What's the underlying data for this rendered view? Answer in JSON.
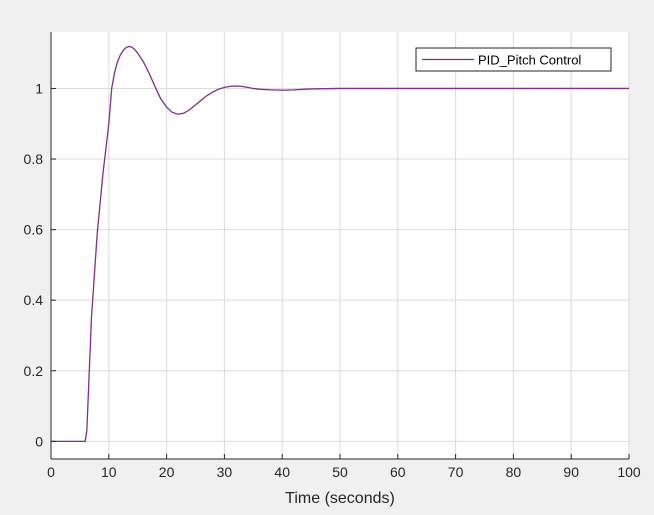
{
  "colors": {
    "figure_bg": "#f0f0f0",
    "axes_bg": "#ffffff",
    "grid": "#dcdcdc",
    "axis": "#262626",
    "series": "#7e2f8e"
  },
  "chart_data": {
    "type": "line",
    "title": "",
    "xlabel": "Time (seconds)",
    "ylabel": "",
    "xlim": [
      0,
      100
    ],
    "ylim": [
      -0.05,
      1.16
    ],
    "grid": true,
    "legend_position": "top-right",
    "x_ticks": [
      0,
      10,
      20,
      30,
      40,
      50,
      60,
      70,
      80,
      90,
      100
    ],
    "y_ticks": [
      0,
      0.2,
      0.4,
      0.6,
      0.8,
      1
    ],
    "series": [
      {
        "name": "PID_Pitch Control",
        "x": [
          0,
          5.9,
          6.2,
          7,
          8,
          9,
          10,
          10.5,
          11,
          11.5,
          12,
          12.5,
          13,
          13.5,
          14,
          14.5,
          15,
          16,
          17,
          18,
          19,
          20,
          21,
          22,
          23,
          24,
          25,
          26,
          27,
          28,
          29,
          30,
          31,
          32,
          33,
          34,
          35,
          36,
          38,
          40,
          42,
          44,
          46,
          50,
          60,
          70,
          80,
          90,
          100
        ],
        "values": [
          0,
          0,
          0.03,
          0.35,
          0.59,
          0.76,
          0.9,
          1.0,
          1.045,
          1.075,
          1.095,
          1.108,
          1.116,
          1.119,
          1.117,
          1.11,
          1.1,
          1.075,
          1.042,
          1.005,
          0.97,
          0.947,
          0.932,
          0.927,
          0.93,
          0.94,
          0.953,
          0.967,
          0.98,
          0.99,
          0.998,
          1.003,
          1.006,
          1.007,
          1.006,
          1.003,
          1.0,
          0.998,
          0.996,
          0.995,
          0.996,
          0.998,
          0.999,
          1.0,
          1.0,
          1.0,
          1.0,
          1.0,
          1.0
        ]
      }
    ]
  }
}
